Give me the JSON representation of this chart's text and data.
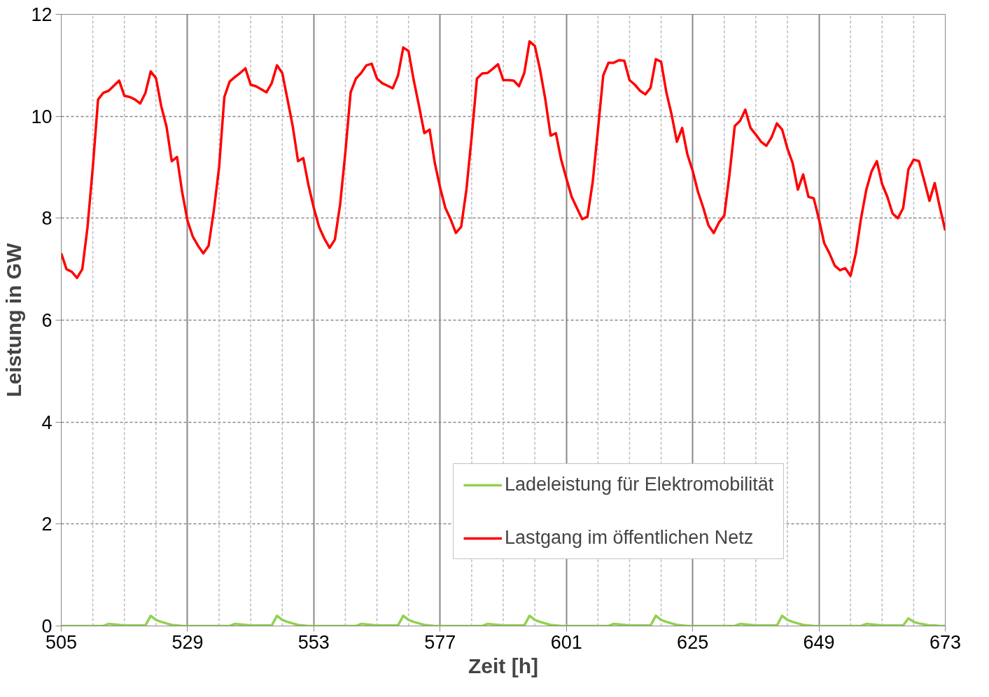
{
  "chart_data": {
    "type": "line",
    "xlabel": "Zeit [h]",
    "ylabel": "Leistung in GW",
    "xlim": [
      505,
      673
    ],
    "ylim": [
      0,
      12
    ],
    "x": [
      505,
      506,
      507,
      508,
      509,
      510,
      511,
      512,
      513,
      514,
      515,
      516,
      517,
      518,
      519,
      520,
      521,
      522,
      523,
      524,
      525,
      526,
      527,
      528,
      529,
      530,
      531,
      532,
      533,
      534,
      535,
      536,
      537,
      538,
      539,
      540,
      541,
      542,
      543,
      544,
      545,
      546,
      547,
      548,
      549,
      550,
      551,
      552,
      553,
      554,
      555,
      556,
      557,
      558,
      559,
      560,
      561,
      562,
      563,
      564,
      565,
      566,
      567,
      568,
      569,
      570,
      571,
      572,
      573,
      574,
      575,
      576,
      577,
      578,
      579,
      580,
      581,
      582,
      583,
      584,
      585,
      586,
      587,
      588,
      589,
      590,
      591,
      592,
      593,
      594,
      595,
      596,
      597,
      598,
      599,
      600,
      601,
      602,
      603,
      604,
      605,
      606,
      607,
      608,
      609,
      610,
      611,
      612,
      613,
      614,
      615,
      616,
      617,
      618,
      619,
      620,
      621,
      622,
      623,
      624,
      625,
      626,
      627,
      628,
      629,
      630,
      631,
      632,
      633,
      634,
      635,
      636,
      637,
      638,
      639,
      640,
      641,
      642,
      643,
      644,
      645,
      646,
      647,
      648,
      649,
      650,
      651,
      652,
      653,
      654,
      655,
      656,
      657,
      658,
      659,
      660,
      661,
      662,
      663,
      664,
      665,
      666,
      667,
      668,
      669,
      670,
      671,
      672,
      673
    ],
    "xticks": [
      505,
      {
        "value": 511,
        "label": null
      },
      {
        "value": 517,
        "label": null
      },
      {
        "value": 523,
        "label": null
      },
      529,
      {
        "value": 535,
        "label": null
      },
      {
        "value": 541,
        "label": null
      },
      {
        "value": 547,
        "label": null
      },
      553,
      {
        "value": 559,
        "label": null
      },
      {
        "value": 565,
        "label": null
      },
      {
        "value": 571,
        "label": null
      },
      577,
      {
        "value": 583,
        "label": null
      },
      {
        "value": 589,
        "label": null
      },
      {
        "value": 595,
        "label": null
      },
      601,
      {
        "value": 607,
        "label": null
      },
      {
        "value": 613,
        "label": null
      },
      {
        "value": 619,
        "label": null
      },
      625,
      {
        "value": 631,
        "label": null
      },
      {
        "value": 637,
        "label": null
      },
      {
        "value": 643,
        "label": null
      },
      649,
      {
        "value": 655,
        "label": null
      },
      {
        "value": 661,
        "label": null
      },
      {
        "value": 667,
        "label": null
      },
      673
    ],
    "yticks": [
      0,
      2,
      4,
      6,
      8,
      10,
      12
    ],
    "grid": true,
    "legend": "bottom right",
    "line_style": "solid",
    "marker": "none",
    "series": [
      {
        "name": "Ladeleistung für Elektromobilität",
        "color": "#92d050",
        "values": [
          0,
          0,
          0,
          0,
          0,
          0,
          0,
          0,
          0,
          0.04,
          0.03,
          0.02,
          0.01,
          0.01,
          0.01,
          0.01,
          0.01,
          0.2,
          0.12,
          0.08,
          0.05,
          0.02,
          0.01,
          0,
          0,
          0,
          0,
          0,
          0,
          0,
          0,
          0,
          0,
          0.04,
          0.03,
          0.02,
          0.01,
          0.01,
          0.01,
          0.01,
          0.01,
          0.2,
          0.12,
          0.08,
          0.05,
          0.02,
          0.01,
          0,
          0,
          0,
          0,
          0,
          0,
          0,
          0,
          0,
          0,
          0.04,
          0.03,
          0.02,
          0.01,
          0.01,
          0.01,
          0.01,
          0.01,
          0.2,
          0.12,
          0.08,
          0.05,
          0.02,
          0.01,
          0,
          0,
          0,
          0,
          0,
          0,
          0,
          0,
          0,
          0,
          0.04,
          0.03,
          0.02,
          0.01,
          0.01,
          0.01,
          0.01,
          0.01,
          0.2,
          0.12,
          0.08,
          0.05,
          0.02,
          0.01,
          0,
          0,
          0,
          0,
          0,
          0,
          0,
          0,
          0,
          0,
          0.04,
          0.03,
          0.02,
          0.01,
          0.01,
          0.01,
          0.01,
          0.01,
          0.2,
          0.12,
          0.08,
          0.05,
          0.02,
          0.01,
          0,
          0,
          0,
          0,
          0,
          0,
          0,
          0,
          0,
          0,
          0.04,
          0.03,
          0.02,
          0.01,
          0.01,
          0.01,
          0.01,
          0.01,
          0.2,
          0.12,
          0.08,
          0.05,
          0.02,
          0.01,
          0,
          0,
          0,
          0,
          0,
          0,
          0,
          0,
          0,
          0,
          0.04,
          0.03,
          0.02,
          0.01,
          0.01,
          0.01,
          0.01,
          0.01,
          0.15,
          0.08,
          0.05,
          0.03,
          0.01,
          0.01,
          0,
          0
        ]
      },
      {
        "name": "Lastgang im öffentlichen Netz",
        "color": "#ff0000",
        "values": [
          7.31,
          7.0,
          6.95,
          6.83,
          7.0,
          7.83,
          9.0,
          10.33,
          10.46,
          10.5,
          10.6,
          10.7,
          10.4,
          10.38,
          10.33,
          10.25,
          10.46,
          10.88,
          10.75,
          10.2,
          9.8,
          9.12,
          9.2,
          8.5,
          7.95,
          7.64,
          7.46,
          7.31,
          7.46,
          8.15,
          9.0,
          10.38,
          10.68,
          10.77,
          10.85,
          10.94,
          10.62,
          10.59,
          10.53,
          10.47,
          10.65,
          11.0,
          10.85,
          10.33,
          9.8,
          9.12,
          9.18,
          8.64,
          8.2,
          7.83,
          7.6,
          7.42,
          7.58,
          8.27,
          9.3,
          10.47,
          10.74,
          10.85,
          11.0,
          11.03,
          10.74,
          10.65,
          10.6,
          10.55,
          10.8,
          11.35,
          11.28,
          10.7,
          10.2,
          9.67,
          9.74,
          9.08,
          8.6,
          8.2,
          7.98,
          7.71,
          7.83,
          8.56,
          9.6,
          10.74,
          10.84,
          10.85,
          10.93,
          11.02,
          10.71,
          10.71,
          10.7,
          10.59,
          10.85,
          11.47,
          11.38,
          10.91,
          10.33,
          9.62,
          9.67,
          9.15,
          8.78,
          8.42,
          8.2,
          7.98,
          8.03,
          8.71,
          9.74,
          10.8,
          11.05,
          11.05,
          11.1,
          11.09,
          10.71,
          10.62,
          10.5,
          10.43,
          10.56,
          11.12,
          11.07,
          10.47,
          10.03,
          9.5,
          9.77,
          9.25,
          8.93,
          8.52,
          8.21,
          7.86,
          7.71,
          7.92,
          8.05,
          8.86,
          9.81,
          9.91,
          10.13,
          9.77,
          9.64,
          9.5,
          9.42,
          9.59,
          9.86,
          9.74,
          9.37,
          9.08,
          8.56,
          8.86,
          8.42,
          8.39,
          7.98,
          7.51,
          7.31,
          7.07,
          6.98,
          7.02,
          6.87,
          7.31,
          8.0,
          8.56,
          8.92,
          9.12,
          8.67,
          8.42,
          8.09,
          8.0,
          8.2,
          8.96,
          9.15,
          9.12,
          8.74,
          8.34,
          8.69,
          8.2,
          7.76
        ]
      }
    ]
  }
}
